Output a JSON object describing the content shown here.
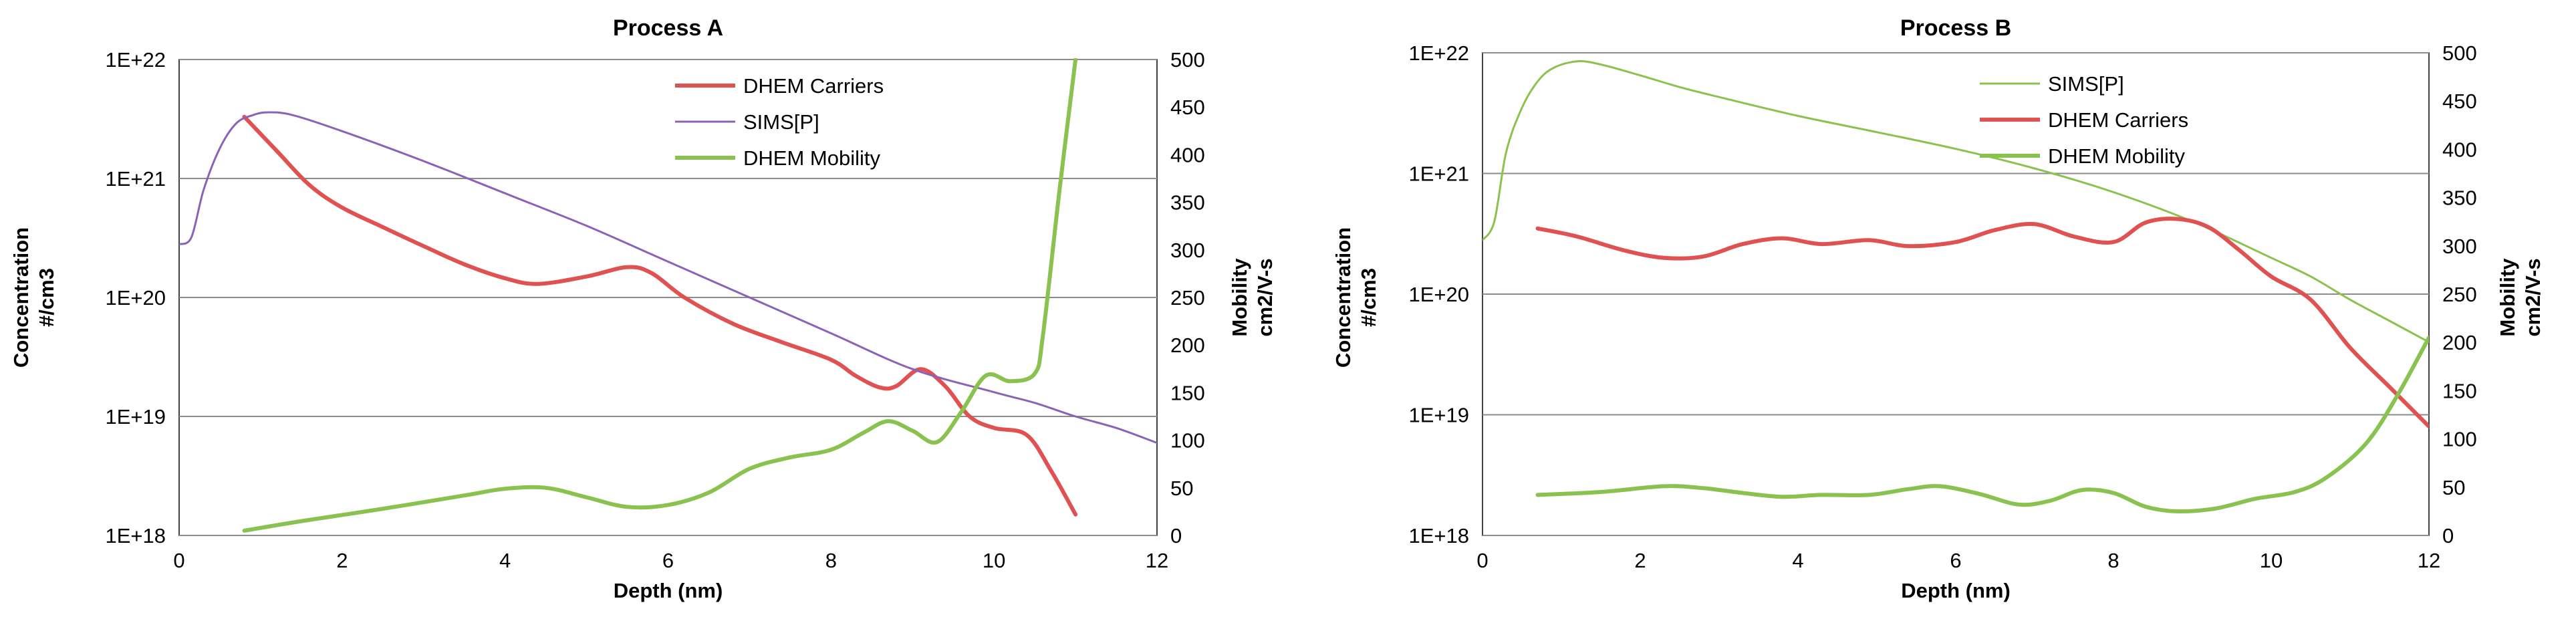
{
  "chart_data": [
    {
      "type": "line",
      "title": "Process A",
      "xlabel": "Depth (nm)",
      "ylabel": [
        "Concentration",
        "#/cm3"
      ],
      "y2label": [
        "Mobility",
        "cm2/V-s"
      ],
      "xlim": [
        0,
        12
      ],
      "xticks": [
        "0",
        "2",
        "4",
        "6",
        "8",
        "10",
        "12"
      ],
      "ylim_log10": [
        18,
        22
      ],
      "yticks": [
        "1E+18",
        "1E+19",
        "1E+20",
        "1E+21",
        "1E+22"
      ],
      "y2lim": [
        0,
        500
      ],
      "y2ticks": [
        "0",
        "50",
        "100",
        "150",
        "200",
        "250",
        "300",
        "350",
        "400",
        "450",
        "500"
      ],
      "grid": true,
      "legend_position": "top-right",
      "series": [
        {
          "name": "DHEM Carriers",
          "axis": "left",
          "color": "#e05252",
          "width": 6,
          "x": [
            0.8,
            1.2,
            1.6,
            2.0,
            2.5,
            3.0,
            3.5,
            4.0,
            4.4,
            5.0,
            5.5,
            5.8,
            6.2,
            6.8,
            7.4,
            8.0,
            8.3,
            8.6,
            8.8,
            9.1,
            9.4,
            9.7,
            10.0,
            10.4,
            10.7,
            11.0
          ],
          "y": [
            3.3e+21,
            1.7e+21,
            8.8e+20,
            5.7e+20,
            3.9e+20,
            2.7e+20,
            1.9e+20,
            1.45e+20,
            1.3e+20,
            1.5e+20,
            1.8e+20,
            1.6e+20,
            1e+20,
            6e+19,
            4.2e+19,
            3e+19,
            2.2e+19,
            1.75e+19,
            1.8e+19,
            2.5e+19,
            1.8e+19,
            1e+19,
            8e+18,
            7e+18,
            3.5e+18,
            1.5e+18
          ]
        },
        {
          "name": "SIMS[P]",
          "axis": "left",
          "color": "#8a62b8",
          "width": 3,
          "x": [
            0,
            0.15,
            0.3,
            0.5,
            0.7,
            0.9,
            1.1,
            1.4,
            2.0,
            3.0,
            4.0,
            5.0,
            6.0,
            7.0,
            8.0,
            9.0,
            10.0,
            10.5,
            11.0,
            11.5,
            12.0
          ],
          "y": [
            2.8e+20,
            3.2e+20,
            8e+20,
            1.8e+21,
            2.9e+21,
            3.4e+21,
            3.6e+21,
            3.4e+21,
            2.5e+21,
            1.4e+21,
            7.5e+20,
            4e+20,
            2e+20,
            1e+20,
            5e+19,
            2.5e+19,
            1.6e+19,
            1.3e+19,
            1e+19,
            8e+18,
            6e+18
          ]
        },
        {
          "name": "DHEM Mobility",
          "axis": "right",
          "color": "#8ac24f",
          "width": 6,
          "x": [
            0.8,
            1.5,
            2.5,
            3.5,
            4.0,
            4.5,
            5.0,
            5.5,
            6.0,
            6.5,
            7.0,
            7.5,
            8.0,
            8.4,
            8.7,
            9.0,
            9.3,
            9.6,
            9.9,
            10.2,
            10.5,
            10.6,
            10.8,
            11.0
          ],
          "y": [
            5,
            15,
            28,
            42,
            49,
            50,
            40,
            30,
            32,
            45,
            70,
            82,
            90,
            108,
            120,
            110,
            98,
            130,
            168,
            162,
            170,
            210,
            360,
            500
          ]
        }
      ]
    },
    {
      "type": "line",
      "title": "Process B",
      "xlabel": "Depth (nm)",
      "ylabel": [
        "Concentration",
        "#/cm3"
      ],
      "y2label": [
        "Mobility",
        "cm2/V-s"
      ],
      "xlim": [
        0,
        12
      ],
      "xticks": [
        "0",
        "2",
        "4",
        "6",
        "8",
        "10",
        "12"
      ],
      "ylim_log10": [
        18,
        22
      ],
      "yticks": [
        "1E+18",
        "1E+19",
        "1E+20",
        "1E+21",
        "1E+22"
      ],
      "y2lim": [
        0,
        500
      ],
      "y2ticks": [
        "0",
        "50",
        "100",
        "150",
        "200",
        "250",
        "300",
        "350",
        "400",
        "450",
        "500"
      ],
      "grid": true,
      "legend_position": "top-right",
      "series": [
        {
          "name": "SIMS[P]",
          "axis": "left",
          "color": "#8ac24f",
          "width": 3,
          "x": [
            0,
            0.15,
            0.3,
            0.5,
            0.7,
            0.9,
            1.2,
            1.5,
            2.0,
            2.5,
            3.0,
            4.0,
            5.0,
            6.0,
            7.0,
            8.0,
            9.0,
            10.0,
            10.5,
            11.0,
            11.5,
            12.0
          ],
          "y": [
            2.8e+20,
            4e+20,
            1.5e+21,
            3.5e+21,
            5.8e+21,
            7.5e+21,
            8.5e+21,
            8e+21,
            6.5e+21,
            5.2e+21,
            4.3e+21,
            3e+21,
            2.2e+21,
            1.6e+21,
            1.1e+21,
            7e+20,
            4e+20,
            2e+20,
            1.4e+20,
            9e+19,
            6e+19,
            4e+19
          ]
        },
        {
          "name": "DHEM Carriers",
          "axis": "left",
          "color": "#e05252",
          "width": 6,
          "x": [
            0.7,
            1.2,
            1.8,
            2.3,
            2.8,
            3.3,
            3.8,
            4.3,
            4.9,
            5.4,
            6.0,
            6.5,
            7.0,
            7.5,
            8.0,
            8.4,
            8.8,
            9.2,
            9.6,
            10.0,
            10.5,
            11.0,
            11.5,
            12.0
          ],
          "y": [
            3.5e+20,
            3e+20,
            2.3e+20,
            2e+20,
            2.05e+20,
            2.6e+20,
            2.9e+20,
            2.6e+20,
            2.8e+20,
            2.5e+20,
            2.7e+20,
            3.4e+20,
            3.8e+20,
            3e+20,
            2.7e+20,
            3.9e+20,
            4.2e+20,
            3.6e+20,
            2.3e+20,
            1.4e+20,
            9e+19,
            3.6e+19,
            1.7e+19,
            8e+18
          ]
        },
        {
          "name": "DHEM Mobility",
          "axis": "right",
          "color": "#8ac24f",
          "width": 6,
          "x": [
            0.7,
            1.5,
            2.3,
            2.8,
            3.3,
            3.8,
            4.3,
            4.9,
            5.4,
            5.8,
            6.3,
            6.8,
            7.2,
            7.6,
            8.0,
            8.4,
            8.8,
            9.3,
            9.8,
            10.3,
            10.7,
            11.2,
            11.6,
            12.0
          ],
          "y": [
            42,
            45,
            51,
            49,
            44,
            40,
            42,
            42,
            48,
            51,
            43,
            32,
            36,
            47,
            44,
            30,
            25,
            28,
            38,
            45,
            60,
            95,
            145,
            205
          ]
        }
      ]
    }
  ]
}
